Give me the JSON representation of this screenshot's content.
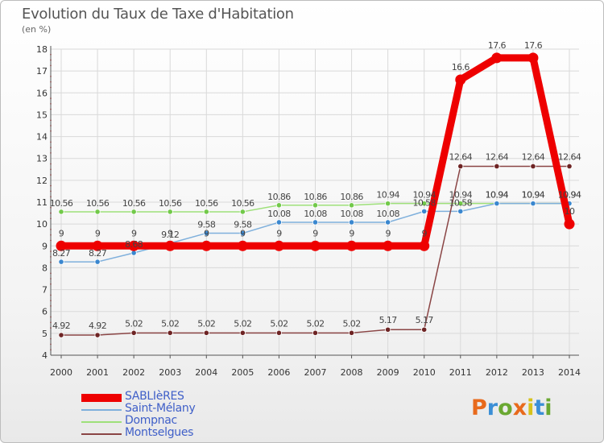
{
  "title": "Evolution du Taux de Taxe d'Habitation",
  "subtitle": "(en %)",
  "logo": {
    "letters": [
      "P",
      "r",
      "o",
      "x",
      "i",
      "t",
      "i"
    ],
    "colors": [
      "#e86a1c",
      "#3b8fd6",
      "#6aa832",
      "#e86a1c",
      "#d6c21b",
      "#3b8fd6",
      "#6aa832"
    ]
  },
  "chart_data": {
    "type": "line",
    "x": [
      "2000",
      "2001",
      "2002",
      "2003",
      "2004",
      "2005",
      "2006",
      "2007",
      "2008",
      "2009",
      "2010",
      "2011",
      "2012",
      "2013",
      "2014"
    ],
    "ylim": [
      4,
      18
    ],
    "yticks": [
      "4",
      "5",
      "6",
      "7",
      "8",
      "9",
      "10",
      "11",
      "12",
      "13",
      "14",
      "15",
      "16",
      "17",
      "18"
    ],
    "grid": true,
    "legend_position": "bottom-left",
    "series": [
      {
        "name": "SABLIèRES",
        "color": "#ee0000",
        "values": [
          9,
          9,
          9,
          9,
          9,
          9,
          9,
          9,
          9,
          9,
          9,
          16.6,
          17.6,
          17.6,
          10
        ],
        "labels": [
          "9",
          "9",
          "9",
          "9",
          "9",
          "9",
          "9",
          "9",
          "9",
          "9",
          "9",
          "16.6",
          "17.6",
          "17.6",
          "10"
        ]
      },
      {
        "name": "Saint-Mélany",
        "color": "#6fa8d8",
        "values": [
          8.27,
          8.27,
          8.68,
          9.12,
          9.58,
          9.58,
          10.08,
          10.08,
          10.08,
          10.08,
          10.58,
          10.58,
          10.94,
          10.94,
          10.94
        ],
        "labels": [
          "8.27",
          "8.27",
          "8.68",
          "9.12",
          "9.58",
          "9.58",
          "10.08",
          "10.08",
          "10.08",
          "10.08",
          "10.58",
          "10.58",
          "10.94",
          "10.94",
          "10.94"
        ]
      },
      {
        "name": "Dompnac",
        "color": "#9ee07a",
        "values": [
          10.56,
          10.56,
          10.56,
          10.56,
          10.56,
          10.56,
          10.86,
          10.86,
          10.86,
          10.94,
          10.94,
          10.94,
          10.94,
          10.94,
          10.94
        ],
        "labels": [
          "10.56",
          "10.56",
          "10.56",
          "10.56",
          "10.56",
          "10.56",
          "10.86",
          "10.86",
          "10.86",
          "10.94",
          "10.94",
          "10.94",
          "10.94",
          "10.94",
          "10.94"
        ]
      },
      {
        "name": "Montselgues",
        "color": "#7b2c2c",
        "values": [
          4.92,
          4.92,
          5.02,
          5.02,
          5.02,
          5.02,
          5.02,
          5.02,
          5.02,
          5.17,
          5.17,
          12.64,
          12.64,
          12.64,
          12.64
        ],
        "labels": [
          "4.92",
          "4.92",
          "5.02",
          "5.02",
          "5.02",
          "5.02",
          "5.02",
          "5.02",
          "5.02",
          "5.17",
          "5.17",
          "12.64",
          "12.64",
          "12.64",
          "12.64"
        ]
      }
    ]
  }
}
